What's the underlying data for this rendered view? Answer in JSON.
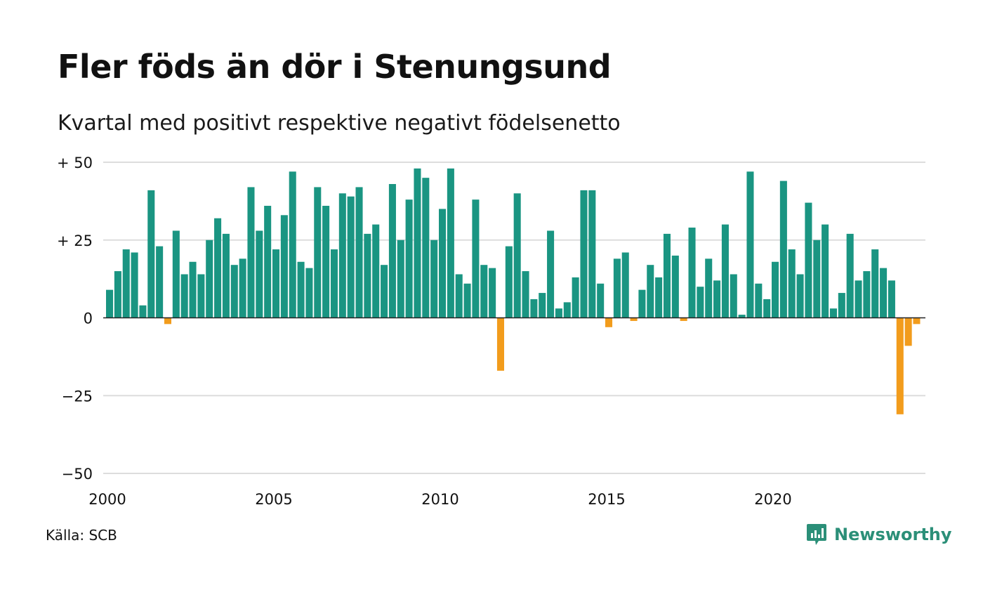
{
  "title": "Fler föds än dör i Stenungsund",
  "subtitle": "Kvartal med positivt respektive negativt födelsenetto",
  "source": "Källa: SCB",
  "brand": {
    "name": "Newsworthy",
    "icon": "newsworthy-logo-icon"
  },
  "colors": {
    "positive": "#1a9582",
    "negative": "#f29c1c",
    "grid": "#dddddd",
    "axis": "#222222",
    "brand": "#2b8f78"
  },
  "chart_data": {
    "type": "bar",
    "title": "Fler föds än dör i Stenungsund",
    "subtitle": "Kvartal med positivt respektive negativt födelsenetto",
    "x_start": 2000,
    "periods_per_year": 4,
    "ylim": [
      -50,
      50
    ],
    "yticks": [
      50,
      25,
      0,
      -25,
      -50
    ],
    "ytick_labels": [
      "+ 50",
      "+ 25",
      "0",
      "−25",
      "−50"
    ],
    "xticks": [
      2000,
      2005,
      2010,
      2015,
      2020
    ],
    "xtick_labels": [
      "2000",
      "2005",
      "2010",
      "2015",
      "2020"
    ],
    "grid": true,
    "values": [
      9,
      15,
      22,
      21,
      4,
      41,
      23,
      -2,
      28,
      14,
      18,
      14,
      25,
      32,
      27,
      17,
      19,
      42,
      28,
      36,
      22,
      33,
      47,
      18,
      16,
      42,
      36,
      22,
      40,
      39,
      42,
      27,
      30,
      17,
      43,
      25,
      38,
      48,
      45,
      25,
      35,
      48,
      14,
      11,
      38,
      17,
      16,
      -17,
      23,
      40,
      15,
      6,
      8,
      28,
      3,
      5,
      13,
      41,
      41,
      11,
      -3,
      19,
      21,
      -1,
      9,
      17,
      13,
      27,
      20,
      -1,
      29,
      10,
      19,
      12,
      30,
      14,
      1,
      47,
      11,
      6,
      18,
      44,
      22,
      14,
      37,
      25,
      30,
      3,
      8,
      27,
      12,
      15,
      22,
      16,
      12,
      -31,
      -9,
      -2
    ]
  }
}
